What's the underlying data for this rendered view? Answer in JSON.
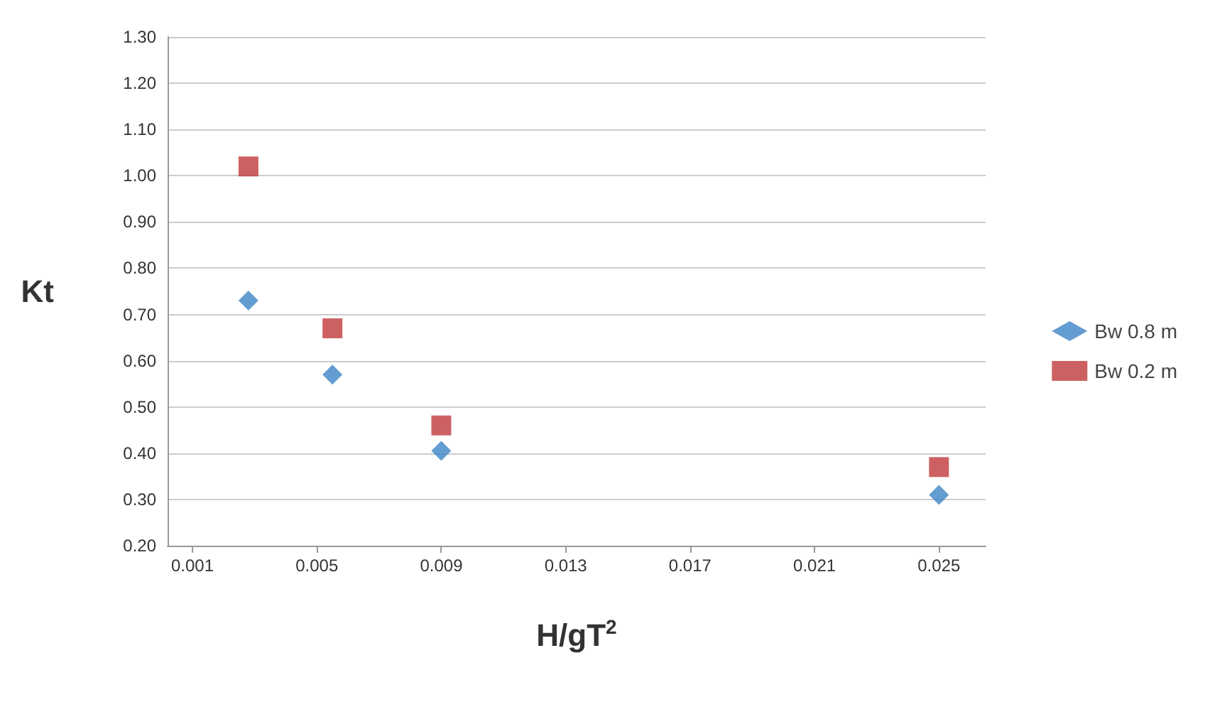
{
  "chart_data": {
    "type": "scatter",
    "xlabel": "H/gT$^{2}$",
    "ylabel": "Kt",
    "xlim": [
      0.0002,
      0.0265
    ],
    "xticks": [
      0.001,
      0.005,
      0.009,
      0.013,
      0.017,
      0.021,
      0.025
    ],
    "ylim": [
      0.2,
      1.3
    ],
    "yticks": [
      {
        "value": 0.2,
        "label": "0.20"
      },
      {
        "value": 0.3,
        "label": "0.30"
      },
      {
        "value": 0.4,
        "label": "0.40"
      },
      {
        "value": 0.5,
        "label": "0.50"
      },
      {
        "value": 0.6,
        "label": "0.60"
      },
      {
        "value": 0.7,
        "label": "0.70"
      },
      {
        "value": 0.8,
        "label": "0.80"
      },
      {
        "value": 0.9,
        "label": "0.90"
      },
      {
        "value": 1.0,
        "label": "1.00"
      },
      {
        "value": 1.1,
        "label": "1.10"
      },
      {
        "value": 1.2,
        "label": "1.20"
      },
      {
        "value": 1.3,
        "label": "1.30"
      }
    ],
    "grid": "y",
    "legend": "right",
    "series": [
      {
        "name": "Bw 0.8 m",
        "color": "#3d85c6",
        "marker": "diamond",
        "x": [
          0.0028,
          0.0055,
          0.009,
          0.025
        ],
        "values": [
          0.73,
          0.57,
          0.405,
          0.31
        ]
      },
      {
        "name": "Bw 0.2 m",
        "color": "#c0393b",
        "marker": "square",
        "x": [
          0.0028,
          0.0055,
          0.009,
          0.025
        ],
        "values": [
          1.02,
          0.67,
          0.46,
          0.37
        ]
      }
    ]
  }
}
